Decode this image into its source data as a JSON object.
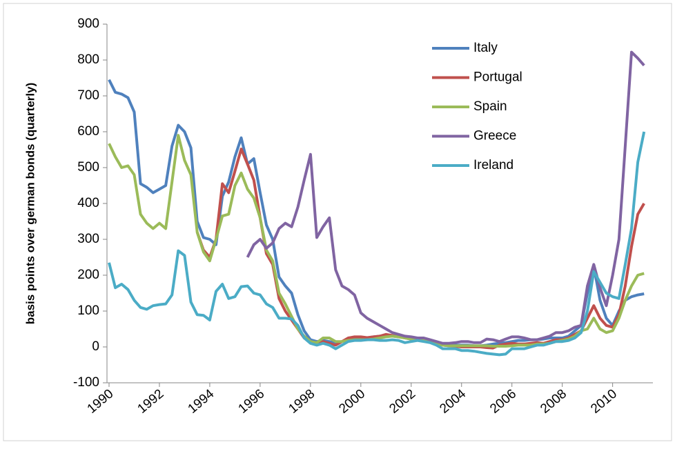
{
  "chart_data": {
    "type": "line",
    "ylabel": "basis points over german bonds (quarterly)",
    "x": [
      1990,
      1990.25,
      1990.5,
      1990.75,
      1991,
      1991.25,
      1991.5,
      1991.75,
      1992,
      1992.25,
      1992.5,
      1992.75,
      1993,
      1993.25,
      1993.5,
      1993.75,
      1994,
      1994.25,
      1994.5,
      1994.75,
      1995,
      1995.25,
      1995.5,
      1995.75,
      1996,
      1996.25,
      1996.5,
      1996.75,
      1997,
      1997.25,
      1997.5,
      1997.75,
      1998,
      1998.25,
      1998.5,
      1998.75,
      1999,
      1999.25,
      1999.5,
      1999.75,
      2000,
      2000.25,
      2000.5,
      2000.75,
      2001,
      2001.25,
      2001.5,
      2001.75,
      2002,
      2002.25,
      2002.5,
      2002.75,
      2003,
      2003.25,
      2003.5,
      2003.75,
      2004,
      2004.25,
      2004.5,
      2004.75,
      2005,
      2005.25,
      2005.5,
      2005.75,
      2006,
      2006.25,
      2006.5,
      2006.75,
      2007,
      2007.25,
      2007.5,
      2007.75,
      2008,
      2008.25,
      2008.5,
      2008.75,
      2009,
      2009.25,
      2009.5,
      2009.75,
      2010,
      2010.25,
      2010.5,
      2010.75,
      2011,
      2011.25
    ],
    "xlim": [
      1990,
      2011.6
    ],
    "xticks": [
      1990,
      1992,
      1994,
      1996,
      1998,
      2000,
      2002,
      2004,
      2006,
      2008,
      2010
    ],
    "ylim": [
      -100,
      900
    ],
    "yticks": [
      -100,
      0,
      100,
      200,
      300,
      400,
      500,
      600,
      700,
      800,
      900
    ],
    "legend": "upper right",
    "series": [
      {
        "name": "Italy",
        "color": "#4f81bd",
        "values": [
          745,
          710,
          705,
          695,
          655,
          455,
          445,
          430,
          440,
          450,
          560,
          618,
          600,
          555,
          350,
          305,
          300,
          285,
          420,
          460,
          530,
          583,
          510,
          525,
          430,
          340,
          300,
          195,
          170,
          150,
          90,
          45,
          20,
          15,
          18,
          15,
          10,
          15,
          20,
          22,
          25,
          25,
          28,
          30,
          32,
          30,
          28,
          26,
          24,
          22,
          20,
          18,
          12,
          5,
          5,
          5,
          5,
          5,
          3,
          3,
          5,
          8,
          10,
          12,
          15,
          18,
          18,
          20,
          20,
          22,
          25,
          25,
          25,
          30,
          45,
          60,
          150,
          225,
          130,
          80,
          60,
          100,
          130,
          140,
          145,
          148
        ]
      },
      {
        "name": "Portugal",
        "color": "#c0504d",
        "values": [
          null,
          null,
          null,
          null,
          null,
          null,
          null,
          null,
          null,
          null,
          null,
          null,
          null,
          null,
          320,
          270,
          250,
          300,
          455,
          430,
          490,
          552,
          510,
          465,
          360,
          260,
          230,
          135,
          100,
          75,
          50,
          25,
          15,
          10,
          15,
          10,
          5,
          15,
          25,
          28,
          28,
          26,
          28,
          30,
          35,
          32,
          28,
          25,
          22,
          20,
          18,
          15,
          10,
          5,
          3,
          2,
          0,
          0,
          0,
          0,
          -2,
          -3,
          5,
          8,
          10,
          8,
          8,
          10,
          12,
          10,
          15,
          20,
          20,
          25,
          35,
          45,
          80,
          115,
          80,
          60,
          55,
          90,
          170,
          280,
          370,
          400
        ]
      },
      {
        "name": "Spain",
        "color": "#9bbb59",
        "values": [
          567,
          530,
          500,
          505,
          480,
          370,
          345,
          330,
          345,
          330,
          460,
          590,
          520,
          480,
          320,
          265,
          240,
          300,
          365,
          370,
          450,
          485,
          440,
          415,
          360,
          270,
          240,
          150,
          120,
          85,
          50,
          30,
          15,
          12,
          25,
          25,
          15,
          15,
          18,
          20,
          20,
          20,
          22,
          25,
          28,
          30,
          28,
          25,
          22,
          20,
          18,
          15,
          8,
          5,
          3,
          3,
          3,
          3,
          3,
          3,
          3,
          2,
          2,
          2,
          3,
          5,
          5,
          5,
          8,
          8,
          10,
          15,
          18,
          22,
          30,
          45,
          50,
          80,
          50,
          40,
          45,
          80,
          130,
          170,
          200,
          205
        ]
      },
      {
        "name": "Greece",
        "color": "#8064a2",
        "values": [
          null,
          null,
          null,
          null,
          null,
          null,
          null,
          null,
          null,
          null,
          null,
          null,
          null,
          null,
          null,
          null,
          null,
          null,
          null,
          null,
          null,
          null,
          250,
          285,
          300,
          275,
          290,
          330,
          345,
          335,
          390,
          465,
          537,
          305,
          335,
          360,
          215,
          170,
          160,
          145,
          95,
          80,
          70,
          60,
          50,
          40,
          35,
          30,
          28,
          25,
          25,
          20,
          15,
          10,
          10,
          12,
          15,
          15,
          12,
          12,
          22,
          20,
          15,
          22,
          28,
          28,
          25,
          20,
          20,
          25,
          30,
          40,
          40,
          45,
          55,
          60,
          170,
          230,
          165,
          115,
          200,
          300,
          560,
          822,
          805,
          785
        ]
      },
      {
        "name": "Ireland",
        "color": "#4bacc6",
        "values": [
          235,
          165,
          175,
          160,
          130,
          110,
          105,
          115,
          118,
          120,
          145,
          268,
          255,
          125,
          90,
          88,
          75,
          155,
          175,
          135,
          140,
          168,
          170,
          150,
          145,
          120,
          110,
          80,
          80,
          78,
          60,
          25,
          10,
          5,
          10,
          5,
          -5,
          5,
          15,
          18,
          18,
          20,
          20,
          18,
          18,
          20,
          18,
          12,
          15,
          18,
          15,
          12,
          5,
          -5,
          -5,
          -5,
          -10,
          -10,
          -12,
          -15,
          -18,
          -20,
          -22,
          -20,
          -5,
          -5,
          -5,
          0,
          5,
          5,
          10,
          15,
          15,
          18,
          25,
          40,
          100,
          210,
          180,
          150,
          140,
          135,
          230,
          330,
          515,
          600
        ]
      }
    ]
  }
}
